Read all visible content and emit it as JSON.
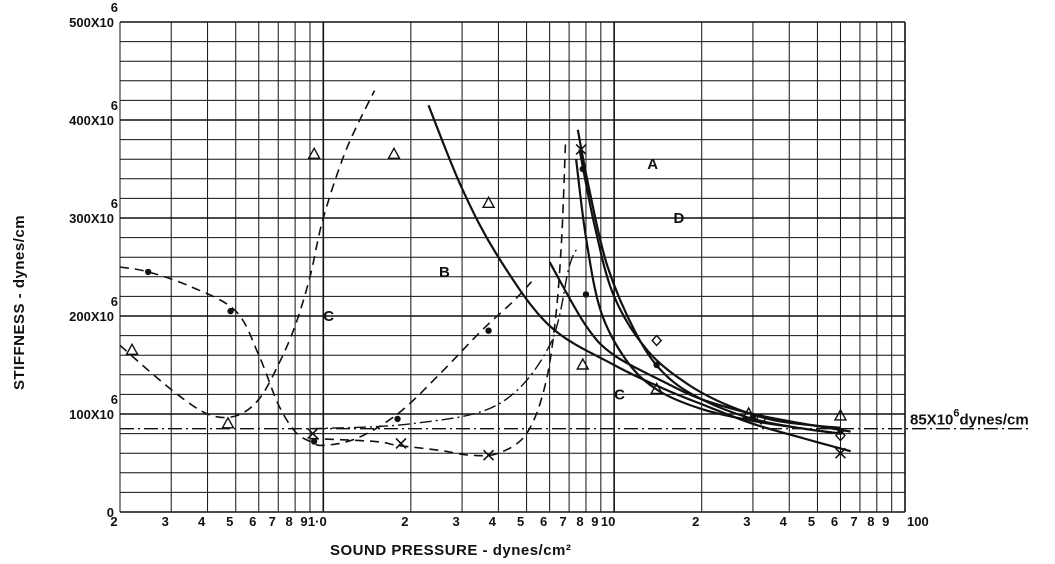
{
  "chart_data": {
    "type": "line",
    "title": "",
    "xlabel": "SOUND PRESSURE - dynes/cm²",
    "ylabel": "STIFFNESS - dynes/cm",
    "x_scale": "log",
    "xlim": [
      0.2,
      100
    ],
    "ylim": [
      0,
      500000000
    ],
    "grid": true,
    "x_tick_labels": [
      {
        "value": 0.2,
        "label": "2"
      },
      {
        "value": 0.3,
        "label": "3"
      },
      {
        "value": 0.4,
        "label": "4"
      },
      {
        "value": 0.5,
        "label": "5"
      },
      {
        "value": 0.6,
        "label": "6"
      },
      {
        "value": 0.7,
        "label": "7"
      },
      {
        "value": 0.8,
        "label": "8"
      },
      {
        "value": 0.9,
        "label": "9"
      },
      {
        "value": 1,
        "label": "1·0"
      },
      {
        "value": 2,
        "label": "2"
      },
      {
        "value": 3,
        "label": "3"
      },
      {
        "value": 4,
        "label": "4"
      },
      {
        "value": 5,
        "label": "5"
      },
      {
        "value": 6,
        "label": "6"
      },
      {
        "value": 7,
        "label": "7"
      },
      {
        "value": 8,
        "label": "8"
      },
      {
        "value": 9,
        "label": "9"
      },
      {
        "value": 10,
        "label": "10"
      },
      {
        "value": 20,
        "label": "2"
      },
      {
        "value": 30,
        "label": "3"
      },
      {
        "value": 40,
        "label": "4"
      },
      {
        "value": 50,
        "label": "5"
      },
      {
        "value": 60,
        "label": "6"
      },
      {
        "value": 70,
        "label": "7"
      },
      {
        "value": 80,
        "label": "8"
      },
      {
        "value": 90,
        "label": "9"
      },
      {
        "value": 100,
        "label": "100"
      }
    ],
    "y_tick_labels": [
      {
        "value": 0,
        "label": "0"
      },
      {
        "value": 100000000,
        "label": "100X10",
        "exp": "6"
      },
      {
        "value": 200000000,
        "label": "200X10",
        "exp": "6"
      },
      {
        "value": 300000000,
        "label": "300X10",
        "exp": "6"
      },
      {
        "value": 400000000,
        "label": "400X10",
        "exp": "6"
      },
      {
        "value": 500000000,
        "label": "500X10",
        "exp": "6"
      }
    ],
    "reference_line": {
      "y": 85000000,
      "label": "85X10",
      "exp": "6",
      "unit": "dynes/cm"
    },
    "curve_labels": [
      {
        "text": "A",
        "x": 13,
        "y": 350000000
      },
      {
        "text": "B",
        "x": 2.5,
        "y": 240000000
      },
      {
        "text": "C",
        "x": 1.0,
        "y": 195000000
      },
      {
        "text": "C",
        "x": 10,
        "y": 115000000
      },
      {
        "text": "D",
        "x": 16,
        "y": 295000000
      }
    ],
    "series": [
      {
        "name": "A",
        "style": "solid",
        "x": [
          7.5,
          8.2,
          9.5,
          12,
          15,
          20,
          30,
          45,
          60
        ],
        "y": [
          390000000,
          330000000,
          250000000,
          180000000,
          140000000,
          115000000,
          95000000,
          85000000,
          80000000
        ]
      },
      {
        "name": "",
        "style": "solid",
        "x": [
          7.6,
          8.6,
          10,
          13,
          18,
          25,
          35,
          50,
          60
        ],
        "y": [
          370000000,
          290000000,
          220000000,
          165000000,
          130000000,
          108000000,
          94000000,
          88000000,
          86000000
        ]
      },
      {
        "name": "",
        "style": "solid",
        "x": [
          7.4,
          8,
          9,
          11,
          14,
          20,
          30,
          45,
          60
        ],
        "y": [
          360000000,
          280000000,
          205000000,
          155000000,
          125000000,
          105000000,
          93000000,
          85000000,
          80000000
        ]
      },
      {
        "name": "B",
        "style": "solid",
        "x": [
          2.3,
          3,
          4,
          6,
          10,
          15,
          20,
          30,
          45,
          65
        ],
        "y": [
          415000000,
          330000000,
          260000000,
          190000000,
          150000000,
          125000000,
          110000000,
          90000000,
          75000000,
          62000000
        ]
      },
      {
        "name": "C",
        "style": "solid",
        "x": [
          6,
          8,
          10,
          15,
          20,
          30,
          45,
          65
        ],
        "y": [
          255000000,
          190000000,
          160000000,
          132000000,
          115000000,
          100000000,
          90000000,
          82000000
        ]
      },
      {
        "name": "",
        "style": "dashed",
        "x": [
          0.2,
          0.3,
          0.4,
          0.5,
          0.6,
          0.7,
          0.8,
          0.9,
          1.0,
          1.2,
          1.5
        ],
        "y": [
          170000000,
          125000000,
          100000000,
          98000000,
          115000000,
          150000000,
          190000000,
          240000000,
          300000000,
          370000000,
          430000000
        ]
      },
      {
        "name": "",
        "style": "dashed",
        "x": [
          0.2,
          0.25,
          0.35,
          0.5,
          0.6,
          0.7,
          0.8,
          0.9,
          1.0,
          1.3,
          1.8,
          2.5,
          3.5,
          4.5,
          5.2
        ],
        "y": [
          250000000,
          245000000,
          230000000,
          205000000,
          160000000,
          110000000,
          82000000,
          72000000,
          68000000,
          75000000,
          100000000,
          140000000,
          185000000,
          215000000,
          235000000
        ]
      },
      {
        "name": "D",
        "style": "dashed",
        "x": [
          0.9,
          1.5,
          1.8,
          2.5,
          3.2,
          4,
          5,
          5.8,
          6.3,
          6.6,
          6.8
        ],
        "y": [
          75000000,
          72000000,
          68000000,
          63000000,
          58000000,
          60000000,
          80000000,
          130000000,
          200000000,
          280000000,
          375000000
        ]
      },
      {
        "name": "",
        "style": "dashdot",
        "x": [
          0.9,
          2,
          4,
          6,
          7,
          7.5
        ],
        "y": [
          85000000,
          90000000,
          110000000,
          170000000,
          250000000,
          270000000
        ]
      }
    ],
    "markers": [
      {
        "shape": "dot",
        "x": 0.25,
        "y": 245000000
      },
      {
        "shape": "dot",
        "x": 0.48,
        "y": 205000000
      },
      {
        "shape": "dot",
        "x": 0.93,
        "y": 72000000
      },
      {
        "shape": "dot",
        "x": 1.8,
        "y": 95000000
      },
      {
        "shape": "dot",
        "x": 3.7,
        "y": 185000000
      },
      {
        "shape": "dot",
        "x": 7.8,
        "y": 350000000
      },
      {
        "shape": "dot",
        "x": 8.0,
        "y": 222000000
      },
      {
        "shape": "dot",
        "x": 14,
        "y": 150000000
      },
      {
        "shape": "dot",
        "x": 30,
        "y": 97000000
      },
      {
        "shape": "dot",
        "x": 60,
        "y": 82000000
      },
      {
        "shape": "triangle",
        "x": 0.22,
        "y": 165000000
      },
      {
        "shape": "triangle",
        "x": 0.47,
        "y": 90000000
      },
      {
        "shape": "triangle",
        "x": 0.93,
        "y": 365000000
      },
      {
        "shape": "triangle",
        "x": 1.75,
        "y": 365000000
      },
      {
        "shape": "triangle",
        "x": 3.7,
        "y": 315000000
      },
      {
        "shape": "triangle",
        "x": 7.8,
        "y": 150000000
      },
      {
        "shape": "triangle",
        "x": 14,
        "y": 125000000
      },
      {
        "shape": "triangle",
        "x": 29,
        "y": 100000000
      },
      {
        "shape": "triangle",
        "x": 60,
        "y": 98000000
      },
      {
        "shape": "x",
        "x": 0.92,
        "y": 80000000
      },
      {
        "shape": "x",
        "x": 1.85,
        "y": 70000000
      },
      {
        "shape": "x",
        "x": 3.7,
        "y": 58000000
      },
      {
        "shape": "x",
        "x": 7.7,
        "y": 370000000
      },
      {
        "shape": "x",
        "x": 60,
        "y": 60000000
      },
      {
        "shape": "diamond",
        "x": 14,
        "y": 175000000
      },
      {
        "shape": "diamond",
        "x": 32,
        "y": 95000000
      },
      {
        "shape": "diamond",
        "x": 60,
        "y": 78000000
      }
    ]
  }
}
